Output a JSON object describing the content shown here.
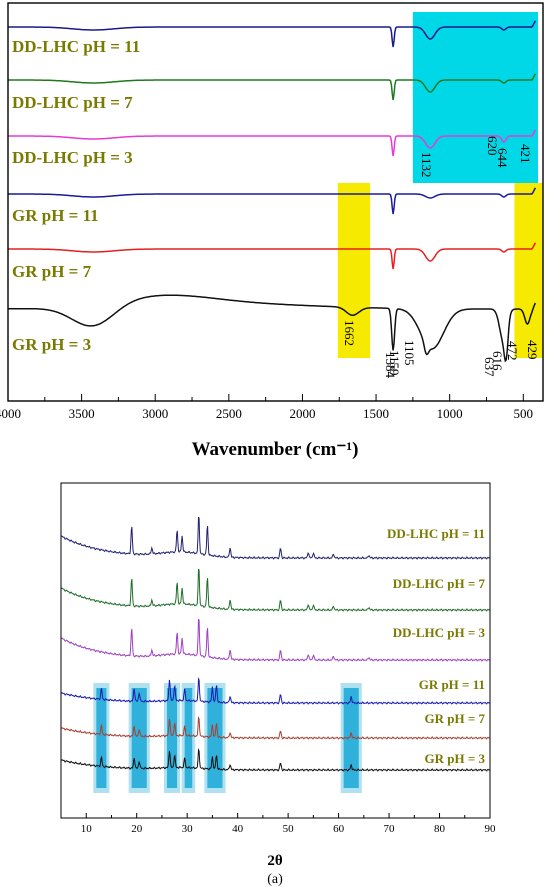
{
  "caption": "(a)",
  "chart_data": [
    {
      "type": "line",
      "xlabel": "Wavenumber (cm⁻¹)",
      "xlim": [
        4000,
        400
      ],
      "x_ticks": [
        4000,
        3500,
        3000,
        2500,
        2000,
        1500,
        1000,
        500
      ],
      "series": [
        {
          "name": "DD-LHC pH = 11",
          "color": "#1a1a8c"
        },
        {
          "name": "DD-LHC pH = 7",
          "color": "#1e7a1e"
        },
        {
          "name": "DD-LHC pH = 3",
          "color": "#e63bd6"
        },
        {
          "name": "GR pH = 11",
          "color": "#1a1a9c"
        },
        {
          "name": "GR pH = 7",
          "color": "#e62020"
        },
        {
          "name": "GR pH = 3",
          "color": "#111111"
        }
      ],
      "annotations": [
        "1132",
        "644",
        "620",
        "421",
        "1662",
        "1384",
        "1159",
        "1105",
        "637",
        "616",
        "472",
        "429"
      ],
      "highlights": [
        {
          "x_range": [
            1250,
            400
          ],
          "color": "#00d8e8"
        },
        {
          "x_range": [
            1760,
            1540
          ],
          "color": "#f5ea00"
        },
        {
          "x_range": [
            560,
            370
          ],
          "color": "#f5ea00"
        }
      ]
    },
    {
      "type": "line",
      "xlabel": "2θ",
      "xlim": [
        5,
        90
      ],
      "x_ticks": [
        10,
        20,
        30,
        40,
        50,
        60,
        70,
        80,
        90
      ],
      "series": [
        {
          "name": "DD-LHC pH = 11",
          "color": "#202070"
        },
        {
          "name": "DD-LHC pH = 7",
          "color": "#1e6e2a"
        },
        {
          "name": "DD-LHC pH = 3",
          "color": "#a040c0"
        },
        {
          "name": "GR pH = 11",
          "color": "#1a1ab0"
        },
        {
          "name": "GR pH = 7",
          "color": "#a84030"
        },
        {
          "name": "GR pH = 3",
          "color": "#111111"
        }
      ],
      "highlights": [
        {
          "x_range": [
            12,
            14
          ],
          "color": "#1aa8d8"
        },
        {
          "x_range": [
            19,
            22
          ],
          "color": "#1aa8d8"
        },
        {
          "x_range": [
            26,
            28
          ],
          "color": "#1aa8d8"
        },
        {
          "x_range": [
            29.5,
            31
          ],
          "color": "#1aa8d8"
        },
        {
          "x_range": [
            34,
            37
          ],
          "color": "#1aa8d8"
        },
        {
          "x_range": [
            61,
            64
          ],
          "color": "#1aa8d8"
        }
      ]
    }
  ]
}
